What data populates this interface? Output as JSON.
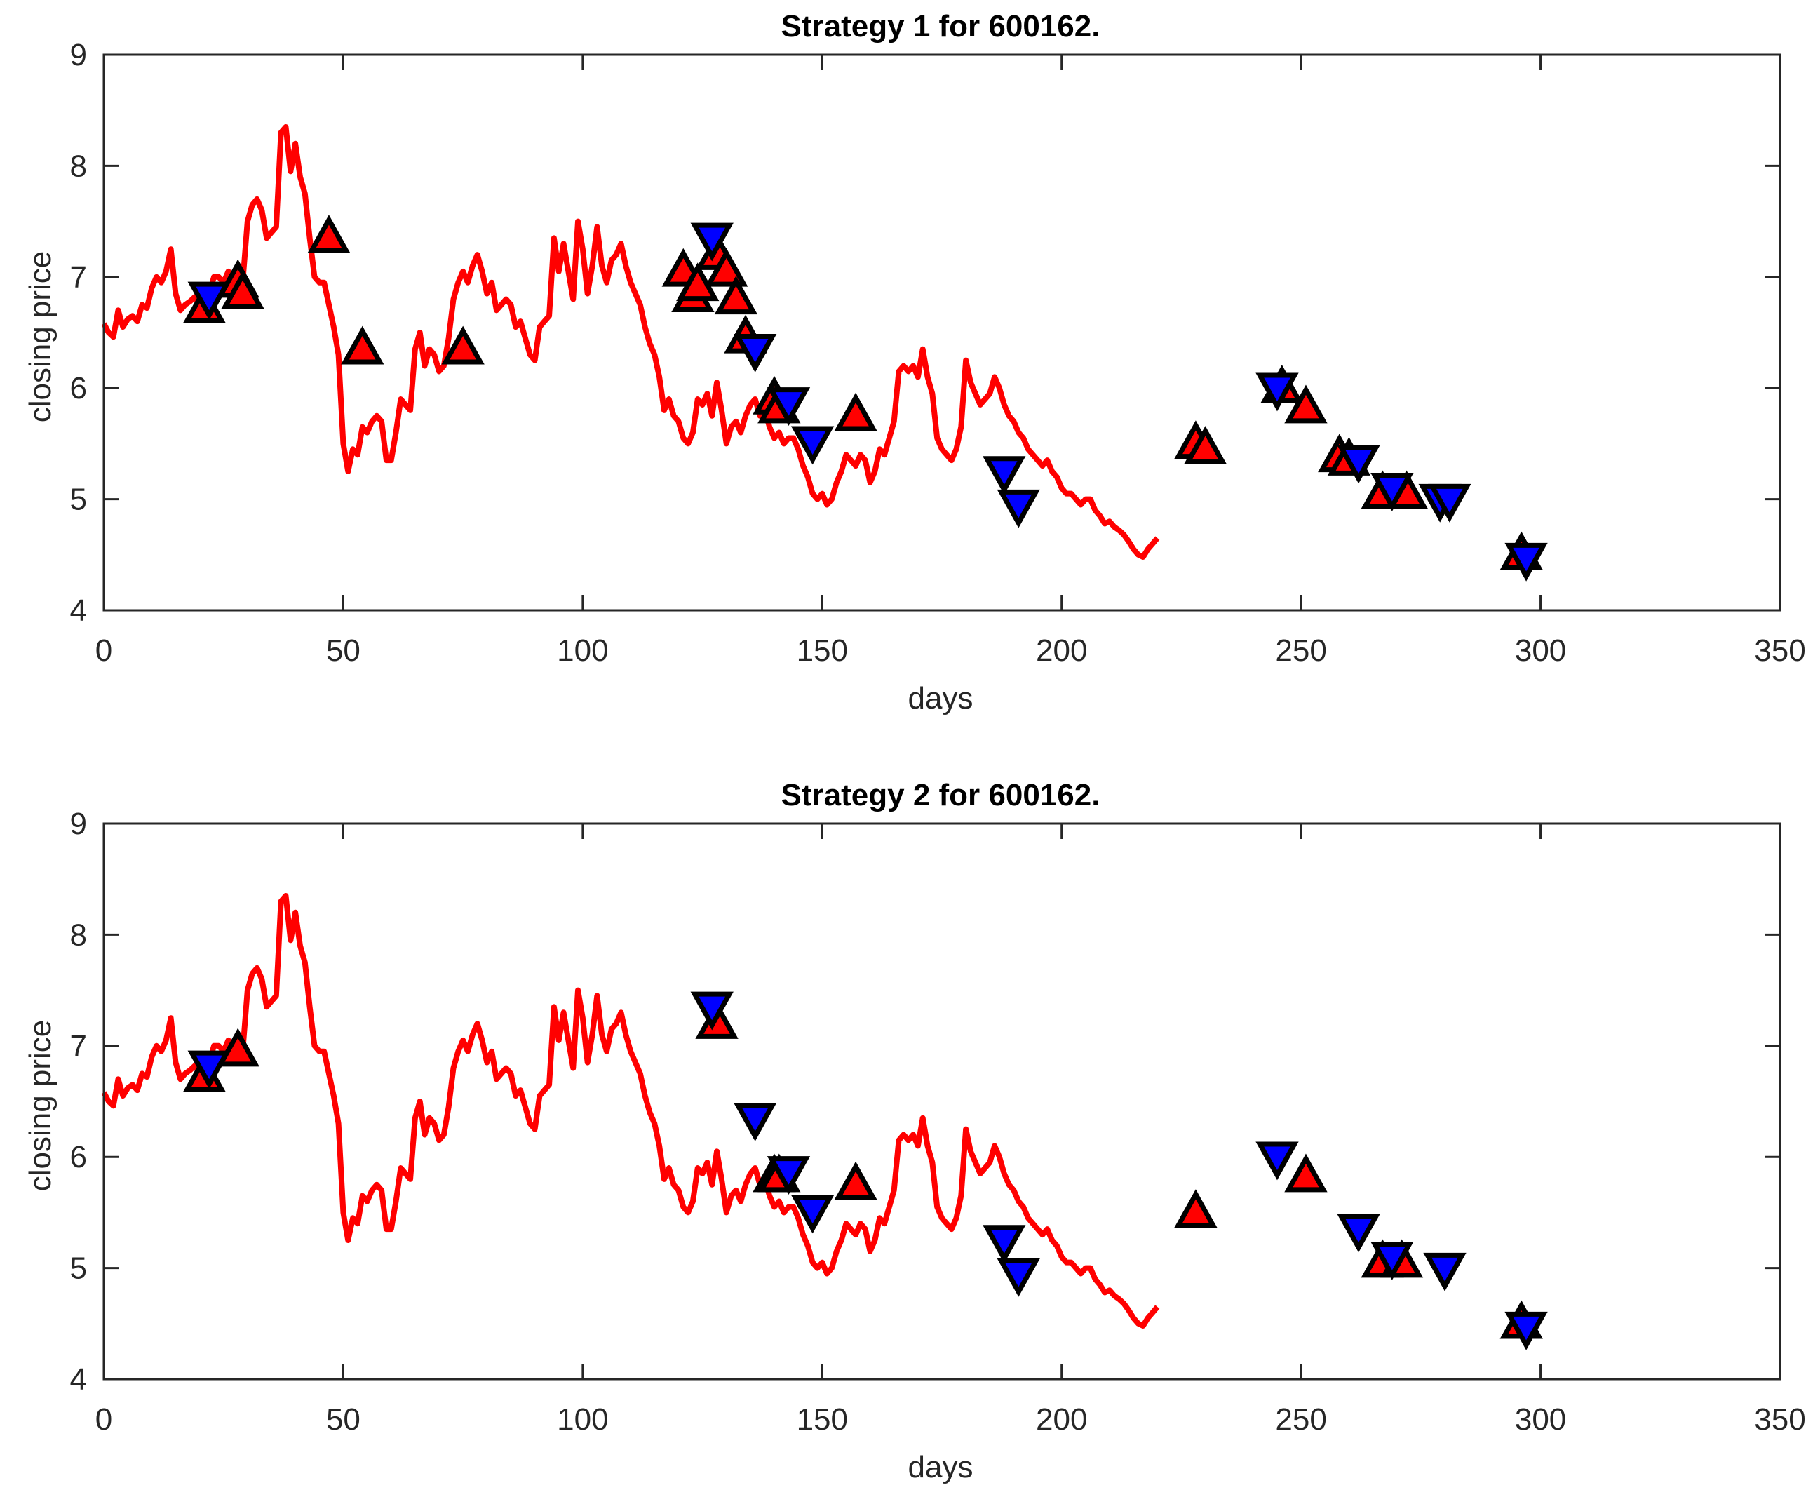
{
  "chart_data": [
    {
      "type": "line",
      "title": "Strategy 1 for 600162.",
      "xlabel": "days",
      "ylabel": "closing price",
      "xlim": [
        0,
        350
      ],
      "ylim": [
        4,
        9
      ],
      "xticks": [
        "0",
        "50",
        "100",
        "150",
        "200",
        "250",
        "300",
        "350"
      ],
      "yticks": [
        "4",
        "5",
        "6",
        "7",
        "8",
        "9"
      ],
      "series_color": "#ff0000",
      "buy_marker_fill": "#ff0000",
      "sell_marker_fill": "#0000ff",
      "price": [
        6.58,
        6.5,
        6.46,
        6.7,
        6.55,
        6.62,
        6.65,
        6.6,
        6.75,
        6.72,
        6.9,
        7.0,
        6.95,
        7.05,
        7.25,
        6.85,
        6.7,
        6.75,
        6.78,
        6.82,
        6.75,
        6.8,
        6.85,
        7.0,
        7.0,
        6.95,
        7.05,
        6.9,
        6.85,
        6.95,
        7.5,
        7.65,
        7.7,
        7.6,
        7.35,
        7.4,
        7.45,
        8.3,
        8.35,
        7.95,
        8.2,
        7.9,
        7.75,
        7.35,
        7.0,
        6.95,
        6.95,
        6.75,
        6.55,
        6.3,
        5.5,
        5.25,
        5.45,
        5.4,
        5.65,
        5.6,
        5.7,
        5.75,
        5.7,
        5.35,
        5.35,
        5.6,
        5.9,
        5.85,
        5.8,
        6.35,
        6.5,
        6.2,
        6.35,
        6.3,
        6.15,
        6.2,
        6.45,
        6.8,
        6.95,
        7.05,
        6.95,
        7.1,
        7.2,
        7.05,
        6.85,
        6.95,
        6.7,
        6.75,
        6.8,
        6.75,
        6.55,
        6.6,
        6.45,
        6.3,
        6.25,
        6.55,
        6.6,
        6.65,
        7.35,
        7.05,
        7.3,
        7.05,
        6.8,
        7.5,
        7.25,
        6.85,
        7.1,
        7.45,
        7.1,
        6.95,
        7.15,
        7.2,
        7.3,
        7.1,
        6.95,
        6.85,
        6.75,
        6.55,
        6.4,
        6.3,
        6.1,
        5.8,
        5.9,
        5.75,
        5.7,
        5.55,
        5.5,
        5.6,
        5.9,
        5.85,
        5.95,
        5.75,
        6.05,
        5.8,
        5.5,
        5.65,
        5.7,
        5.6,
        5.75,
        5.85,
        5.9,
        5.75,
        5.8,
        5.65,
        5.55,
        5.6,
        5.5,
        5.55,
        5.55,
        5.45,
        5.3,
        5.2,
        5.05,
        5.0,
        5.05,
        4.95,
        5.0,
        5.15,
        5.25,
        5.4,
        5.35,
        5.3,
        5.4,
        5.35,
        5.15,
        5.25,
        5.45,
        5.4,
        5.55,
        5.7,
        6.15,
        6.2,
        6.15,
        6.2,
        6.1,
        6.35,
        6.1,
        5.95,
        5.55,
        5.45,
        5.4,
        5.35,
        5.45,
        5.65,
        6.25,
        6.05,
        5.95,
        5.85,
        5.9,
        5.95,
        6.1,
        6.0,
        5.85,
        5.75,
        5.7,
        5.6,
        5.55,
        5.45,
        5.4,
        5.35,
        5.3,
        5.35,
        5.25,
        5.2,
        5.1,
        5.05,
        5.05,
        5.0,
        4.95,
        5.0,
        5.0,
        4.9,
        4.85,
        4.78,
        4.8,
        4.75,
        4.72,
        4.68,
        4.62,
        4.55,
        4.5,
        4.48,
        4.55,
        4.6,
        4.65
      ],
      "buy_markers": [
        [
          21,
          6.72
        ],
        [
          28,
          6.95
        ],
        [
          29,
          6.85
        ],
        [
          47,
          7.35
        ],
        [
          54,
          6.35
        ],
        [
          75,
          6.35
        ],
        [
          121,
          7.05
        ],
        [
          123,
          6.82
        ],
        [
          124,
          6.92
        ],
        [
          128,
          7.2
        ],
        [
          130,
          7.05
        ],
        [
          132,
          6.8
        ],
        [
          134,
          6.45
        ],
        [
          140,
          5.9
        ],
        [
          141,
          5.82
        ],
        [
          157,
          5.75
        ],
        [
          228,
          5.5
        ],
        [
          230,
          5.45
        ],
        [
          246,
          6.0
        ],
        [
          251,
          5.82
        ],
        [
          258,
          5.38
        ],
        [
          260,
          5.35
        ],
        [
          267,
          5.05
        ],
        [
          272,
          5.05
        ],
        [
          296,
          4.5
        ]
      ],
      "sell_markers": [
        [
          22,
          6.82
        ],
        [
          127,
          7.35
        ],
        [
          136,
          6.35
        ],
        [
          143,
          5.87
        ],
        [
          148,
          5.52
        ],
        [
          188,
          5.25
        ],
        [
          191,
          4.95
        ],
        [
          245,
          6.0
        ],
        [
          262,
          5.35
        ],
        [
          269,
          5.1
        ],
        [
          279,
          5.0
        ],
        [
          281,
          5.0
        ],
        [
          297,
          4.47
        ]
      ]
    },
    {
      "type": "line",
      "title": "Strategy 2 for 600162.",
      "xlabel": "days",
      "ylabel": "closing price",
      "xlim": [
        0,
        350
      ],
      "ylim": [
        4,
        9
      ],
      "xticks": [
        "0",
        "50",
        "100",
        "150",
        "200",
        "250",
        "300",
        "350"
      ],
      "yticks": [
        "4",
        "5",
        "6",
        "7",
        "8",
        "9"
      ],
      "series_color": "#ff0000",
      "buy_marker_fill": "#ff0000",
      "sell_marker_fill": "#0000ff",
      "price": [
        6.58,
        6.5,
        6.46,
        6.7,
        6.55,
        6.62,
        6.65,
        6.6,
        6.75,
        6.72,
        6.9,
        7.0,
        6.95,
        7.05,
        7.25,
        6.85,
        6.7,
        6.75,
        6.78,
        6.82,
        6.75,
        6.8,
        6.85,
        7.0,
        7.0,
        6.95,
        7.05,
        6.9,
        6.85,
        6.95,
        7.5,
        7.65,
        7.7,
        7.6,
        7.35,
        7.4,
        7.45,
        8.3,
        8.35,
        7.95,
        8.2,
        7.9,
        7.75,
        7.35,
        7.0,
        6.95,
        6.95,
        6.75,
        6.55,
        6.3,
        5.5,
        5.25,
        5.45,
        5.4,
        5.65,
        5.6,
        5.7,
        5.75,
        5.7,
        5.35,
        5.35,
        5.6,
        5.9,
        5.85,
        5.8,
        6.35,
        6.5,
        6.2,
        6.35,
        6.3,
        6.15,
        6.2,
        6.45,
        6.8,
        6.95,
        7.05,
        6.95,
        7.1,
        7.2,
        7.05,
        6.85,
        6.95,
        6.7,
        6.75,
        6.8,
        6.75,
        6.55,
        6.6,
        6.45,
        6.3,
        6.25,
        6.55,
        6.6,
        6.65,
        7.35,
        7.05,
        7.3,
        7.05,
        6.8,
        7.5,
        7.25,
        6.85,
        7.1,
        7.45,
        7.1,
        6.95,
        7.15,
        7.2,
        7.3,
        7.1,
        6.95,
        6.85,
        6.75,
        6.55,
        6.4,
        6.3,
        6.1,
        5.8,
        5.9,
        5.75,
        5.7,
        5.55,
        5.5,
        5.6,
        5.9,
        5.85,
        5.95,
        5.75,
        6.05,
        5.8,
        5.5,
        5.65,
        5.7,
        5.6,
        5.75,
        5.85,
        5.9,
        5.75,
        5.8,
        5.65,
        5.55,
        5.6,
        5.5,
        5.55,
        5.55,
        5.45,
        5.3,
        5.2,
        5.05,
        5.0,
        5.05,
        4.95,
        5.0,
        5.15,
        5.25,
        5.4,
        5.35,
        5.3,
        5.4,
        5.35,
        5.15,
        5.25,
        5.45,
        5.4,
        5.55,
        5.7,
        6.15,
        6.2,
        6.15,
        6.2,
        6.1,
        6.35,
        6.1,
        5.95,
        5.55,
        5.45,
        5.4,
        5.35,
        5.45,
        5.65,
        6.25,
        6.05,
        5.95,
        5.85,
        5.9,
        5.95,
        6.1,
        6.0,
        5.85,
        5.75,
        5.7,
        5.6,
        5.55,
        5.45,
        5.4,
        5.35,
        5.3,
        5.35,
        5.25,
        5.2,
        5.1,
        5.05,
        5.05,
        5.0,
        4.95,
        5.0,
        5.0,
        4.9,
        4.85,
        4.78,
        4.8,
        4.75,
        4.72,
        4.68,
        4.62,
        4.55,
        4.5,
        4.48,
        4.55,
        4.6,
        4.65
      ],
      "buy_markers": [
        [
          21,
          6.72
        ],
        [
          28,
          6.95
        ],
        [
          128,
          7.2
        ],
        [
          140,
          5.82
        ],
        [
          141,
          5.82
        ],
        [
          157,
          5.75
        ],
        [
          228,
          5.5
        ],
        [
          251,
          5.82
        ],
        [
          267,
          5.05
        ],
        [
          271,
          5.05
        ],
        [
          296,
          4.5
        ]
      ],
      "sell_markers": [
        [
          22,
          6.82
        ],
        [
          127,
          7.35
        ],
        [
          136,
          6.35
        ],
        [
          143,
          5.87
        ],
        [
          148,
          5.52
        ],
        [
          188,
          5.25
        ],
        [
          191,
          4.95
        ],
        [
          245,
          6.0
        ],
        [
          262,
          5.35
        ],
        [
          269,
          5.1
        ],
        [
          280,
          5.0
        ],
        [
          297,
          4.47
        ]
      ]
    }
  ]
}
